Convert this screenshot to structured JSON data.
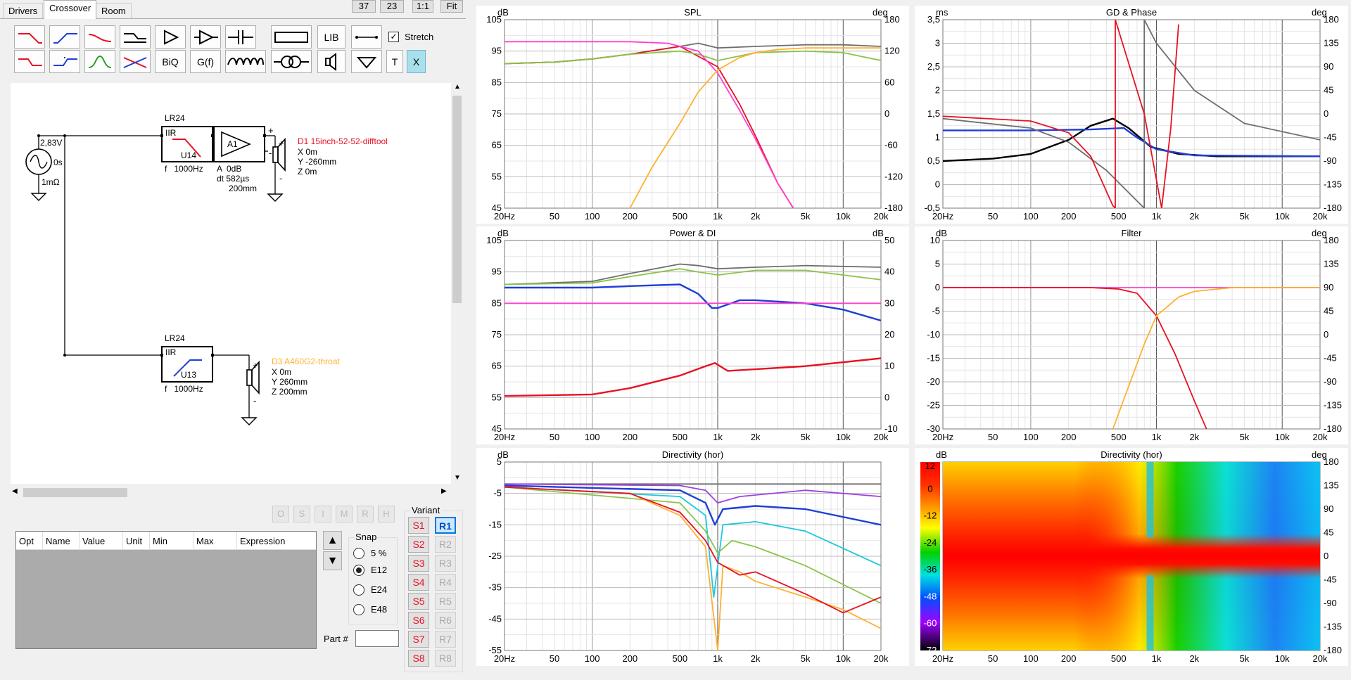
{
  "tabs": [
    "Drivers",
    "Crossover",
    "Room"
  ],
  "top_buttons": [
    "37",
    "23",
    "1:1",
    "Fit"
  ],
  "toolbar": {
    "lib": "LIB",
    "stretch": "Stretch",
    "biq": "BiQ",
    "gf": "G(f)",
    "t": "T",
    "x": "X"
  },
  "schematic": {
    "source": {
      "voltage": "2,83V",
      "delay": "0s",
      "impedance": "1mΩ"
    },
    "filter1": {
      "title": "LR24",
      "type": "IIR",
      "id": "U14",
      "freq": "f   1000Hz"
    },
    "amp": {
      "label": "A1",
      "gain": "A  0dB",
      "delay": "dt 582µs",
      "dist": "200mm"
    },
    "driver1": {
      "name": "D1 15inch-52-52-difftool",
      "x": "X 0m",
      "y": "Y -260mm",
      "z": "Z 0m"
    },
    "filter2": {
      "title": "LR24",
      "type": "IIR",
      "id": "U13",
      "freq": "f   1000Hz"
    },
    "driver2": {
      "name": "D3 A460G2-throat",
      "x": "X 0m",
      "y": "Y 260mm",
      "z": "Z 200mm"
    }
  },
  "panel_buttons": [
    "O",
    "S",
    "I",
    "M",
    "R",
    "H"
  ],
  "param_table": {
    "headers": [
      "Opt",
      "Name",
      "Value",
      "Unit",
      "Min",
      "Max",
      "Expression"
    ]
  },
  "snap": {
    "label": "Snap",
    "options": [
      "5 %",
      "E12",
      "E24",
      "E48"
    ],
    "selected": "E12"
  },
  "part_label": "Part #",
  "variant": {
    "label": "Variant",
    "s": [
      "S1",
      "S2",
      "S3",
      "S4",
      "S5",
      "S6",
      "S7",
      "S8"
    ],
    "r": [
      "R1",
      "R2",
      "R3",
      "R4",
      "R5",
      "R6",
      "R7",
      "R8"
    ],
    "selected": "R1"
  },
  "colors": {
    "red": "#e81123",
    "blue": "#1f3fd6",
    "green": "#7ab800",
    "magenta": "#ff3fd0",
    "orange": "#ffb030",
    "gray": "#707070",
    "accent": "#0078d7"
  },
  "freq_ticks": [
    "20Hz",
    "50",
    "100",
    "200",
    "500",
    "1k",
    "2k",
    "5k",
    "10k",
    "20k"
  ],
  "chart_data": [
    {
      "type": "line",
      "title": "SPL",
      "ylabel_left": "dB",
      "ylabel_right": "deg",
      "y_ticks": [
        "105",
        "95",
        "85",
        "75",
        "65",
        "55",
        "45"
      ],
      "y2_ticks": [
        "180",
        "120",
        "60",
        "0",
        "-60",
        "-120",
        "-180"
      ],
      "ylim": [
        45,
        105
      ],
      "x_range": [
        "20Hz",
        "20k"
      ],
      "series": [
        {
          "color": "gray",
          "x": [
            20,
            50,
            100,
            200,
            500,
            700,
            1000,
            2000,
            5000,
            10000,
            20000
          ],
          "y": [
            91,
            91.5,
            92.5,
            94,
            96.5,
            97.5,
            96,
            96.5,
            97,
            97,
            96.5
          ]
        },
        {
          "color": "red",
          "x": [
            20,
            50,
            100,
            200,
            500,
            1000,
            1500,
            2000,
            3000,
            4000
          ],
          "y": [
            91,
            91.5,
            92.5,
            94,
            96.5,
            90,
            78,
            68,
            53,
            45
          ]
        },
        {
          "color": "green",
          "x": [
            20,
            50,
            100,
            200,
            500,
            700,
            1000,
            2000,
            5000,
            10000,
            20000
          ],
          "y": [
            91,
            91.5,
            92.5,
            94,
            95,
            94,
            92,
            94.5,
            95,
            94.5,
            92
          ]
        },
        {
          "color": "magenta",
          "x": [
            20,
            50,
            100,
            200,
            400,
            700,
            1000,
            1500,
            2000,
            3000,
            4000
          ],
          "y": [
            98,
            98,
            98,
            98,
            97.5,
            95,
            88,
            76,
            67,
            53,
            45
          ]
        },
        {
          "color": "orange",
          "x": [
            200,
            300,
            500,
            700,
            1000,
            1500,
            2000,
            3000,
            5000,
            20000
          ],
          "y": [
            45,
            58,
            72,
            82,
            89,
            93,
            94.5,
            95.5,
            96,
            96
          ]
        }
      ]
    },
    {
      "type": "line",
      "title": "GD & Phase",
      "ylabel_left": "ms",
      "ylabel_right": "deg",
      "y_ticks": [
        "3,5",
        "3",
        "2,5",
        "2",
        "1,5",
        "1",
        "0,5",
        "0",
        "-0,5"
      ],
      "y2_ticks": [
        "180",
        "135",
        "90",
        "45",
        "0",
        "-45",
        "-90",
        "-135",
        "-180"
      ],
      "ylim": [
        -0.5,
        3.5
      ],
      "x_range": [
        "20Hz",
        "20k"
      ],
      "series": [
        {
          "color": "black",
          "x": [
            20,
            50,
            100,
            200,
            300,
            450,
            600,
            900,
            1500,
            3000,
            20000
          ],
          "y": [
            0.5,
            0.55,
            0.65,
            0.95,
            1.25,
            1.4,
            1.2,
            0.8,
            0.65,
            0.6,
            0.6
          ]
        },
        {
          "color": "blue",
          "x": [
            20,
            100,
            300,
            550,
            700,
            1000,
            2000,
            20000
          ],
          "y": [
            1.15,
            1.15,
            1.17,
            1.2,
            1.0,
            0.75,
            0.62,
            0.6
          ]
        },
        {
          "color": "gray",
          "x": [
            20,
            100,
            200,
            400,
            800,
            800,
            1000,
            2000,
            5000,
            20000
          ],
          "y": [
            1.4,
            1.2,
            0.9,
            0.3,
            -0.5,
            3.5,
            3.0,
            2.0,
            1.3,
            0.95
          ]
        },
        {
          "color": "red",
          "x": [
            20,
            100,
            200,
            300,
            450,
            470,
            470,
            800,
            1100,
            1300,
            1500
          ],
          "y": [
            1.45,
            1.35,
            1.1,
            0.6,
            -0.45,
            -0.5,
            3.5,
            1.5,
            -0.5,
            1.2,
            3.4
          ]
        }
      ]
    },
    {
      "type": "line",
      "title": "Power & DI",
      "ylabel_left": "dB",
      "ylabel_right": "dB",
      "y_ticks": [
        "105",
        "95",
        "85",
        "75",
        "65",
        "55",
        "45"
      ],
      "y2_ticks": [
        "50",
        "40",
        "30",
        "20",
        "10",
        "0",
        "-10"
      ],
      "ylim": [
        45,
        105
      ],
      "x_range": [
        "20Hz",
        "20k"
      ],
      "series": [
        {
          "color": "gray",
          "x": [
            20,
            100,
            200,
            500,
            700,
            1000,
            2000,
            5000,
            20000
          ],
          "y": [
            91,
            92,
            94.5,
            97.5,
            97,
            96,
            96.5,
            97,
            96.5
          ]
        },
        {
          "color": "green",
          "x": [
            20,
            100,
            200,
            500,
            700,
            1000,
            2000,
            5000,
            20000
          ],
          "y": [
            91,
            91.5,
            93.5,
            96,
            95,
            94,
            95.5,
            95.5,
            92.5
          ]
        },
        {
          "color": "blue",
          "x": [
            20,
            100,
            200,
            500,
            700,
            900,
            1000,
            1500,
            2000,
            5000,
            10000,
            20000
          ],
          "y": [
            90,
            90,
            90.5,
            91,
            88,
            83.5,
            83.5,
            86,
            86,
            85,
            83,
            79.5
          ]
        },
        {
          "color": "magenta",
          "x": [
            20,
            20000
          ],
          "y": [
            85,
            85
          ]
        },
        {
          "color": "red",
          "x": [
            20,
            100,
            200,
            500,
            800,
            950,
            1200,
            2000,
            5000,
            20000
          ],
          "y": [
            55.5,
            56,
            58,
            62,
            65,
            66,
            63.5,
            64,
            65,
            67.5
          ]
        }
      ]
    },
    {
      "type": "line",
      "title": "Filter",
      "ylabel_left": "dB",
      "ylabel_right": "deg",
      "y_ticks": [
        "10",
        "5",
        "0",
        "-5",
        "-10",
        "-15",
        "-20",
        "-25",
        "-30"
      ],
      "y2_ticks": [
        "180",
        "135",
        "90",
        "45",
        "0",
        "-45",
        "-90",
        "-135",
        "-180"
      ],
      "ylim": [
        -30,
        10
      ],
      "x_range": [
        "20Hz",
        "20k"
      ],
      "series": [
        {
          "color": "magenta",
          "x": [
            20,
            20000
          ],
          "y": [
            0,
            0
          ]
        },
        {
          "color": "red",
          "x": [
            20,
            300,
            500,
            700,
            1000,
            1400,
            2000,
            2500
          ],
          "y": [
            0,
            0,
            -0.3,
            -1.2,
            -6,
            -14,
            -24,
            -30
          ]
        },
        {
          "color": "orange",
          "x": [
            450,
            600,
            800,
            1000,
            1500,
            2000,
            4000,
            20000
          ],
          "y": [
            -30,
            -21,
            -12,
            -6,
            -2,
            -0.8,
            0,
            0
          ]
        }
      ]
    },
    {
      "type": "line",
      "title": "Directivity (hor)",
      "ylabel_left": "dB",
      "y_ticks": [
        "5",
        "-5",
        "-15",
        "-25",
        "-35",
        "-45",
        "-55"
      ],
      "ylim": [
        -55,
        5
      ],
      "x_range": [
        "20Hz",
        "20k"
      ],
      "series": [
        {
          "color": "gray",
          "x": [
            20,
            20000
          ],
          "y": [
            -2,
            -2
          ]
        },
        {
          "color": "purple",
          "x": [
            20,
            500,
            800,
            1000,
            1500,
            5000,
            20000
          ],
          "y": [
            -2,
            -2.5,
            -4,
            -8,
            -6,
            -4,
            -6
          ]
        },
        {
          "color": "blue",
          "x": [
            20,
            500,
            800,
            950,
            1100,
            2000,
            5000,
            20000
          ],
          "y": [
            -2.5,
            -4,
            -8,
            -15,
            -10,
            -9,
            -10,
            -15
          ]
        },
        {
          "color": "cyan",
          "x": [
            20,
            500,
            800,
            930,
            1100,
            2000,
            5000,
            20000
          ],
          "y": [
            -3,
            -6,
            -12,
            -38,
            -15,
            -14,
            -17,
            -28
          ]
        },
        {
          "color": "green",
          "x": [
            20,
            500,
            800,
            1000,
            1300,
            2000,
            5000,
            20000
          ],
          "y": [
            -3,
            -8,
            -17,
            -24,
            -20,
            -22,
            -28,
            -40
          ]
        },
        {
          "color": "orange",
          "x": [
            20,
            200,
            500,
            800,
            1000,
            1100,
            1500,
            2000,
            5000,
            10000,
            20000
          ],
          "y": [
            -3,
            -5,
            -12,
            -22,
            -55,
            -28,
            -30,
            -33,
            -38,
            -42,
            -48
          ]
        },
        {
          "color": "red",
          "x": [
            20,
            200,
            500,
            800,
            1000,
            1500,
            2000,
            5000,
            10000,
            20000
          ],
          "y": [
            -3,
            -5,
            -11,
            -20,
            -27,
            -31,
            -30,
            -37,
            -43,
            -38
          ]
        }
      ]
    },
    {
      "type": "heatmap",
      "title": "Directivity (hor)",
      "ylabel_left": "dB",
      "ylabel_right": "deg",
      "color_scale": [
        "12",
        "0",
        "-12",
        "-24",
        "-36",
        "-48",
        "-60",
        "-72"
      ],
      "y2_ticks": [
        "180",
        "135",
        "90",
        "45",
        "0",
        "-45",
        "-90",
        "-135",
        "-180"
      ],
      "x_range": [
        "20Hz",
        "20k"
      ]
    }
  ]
}
